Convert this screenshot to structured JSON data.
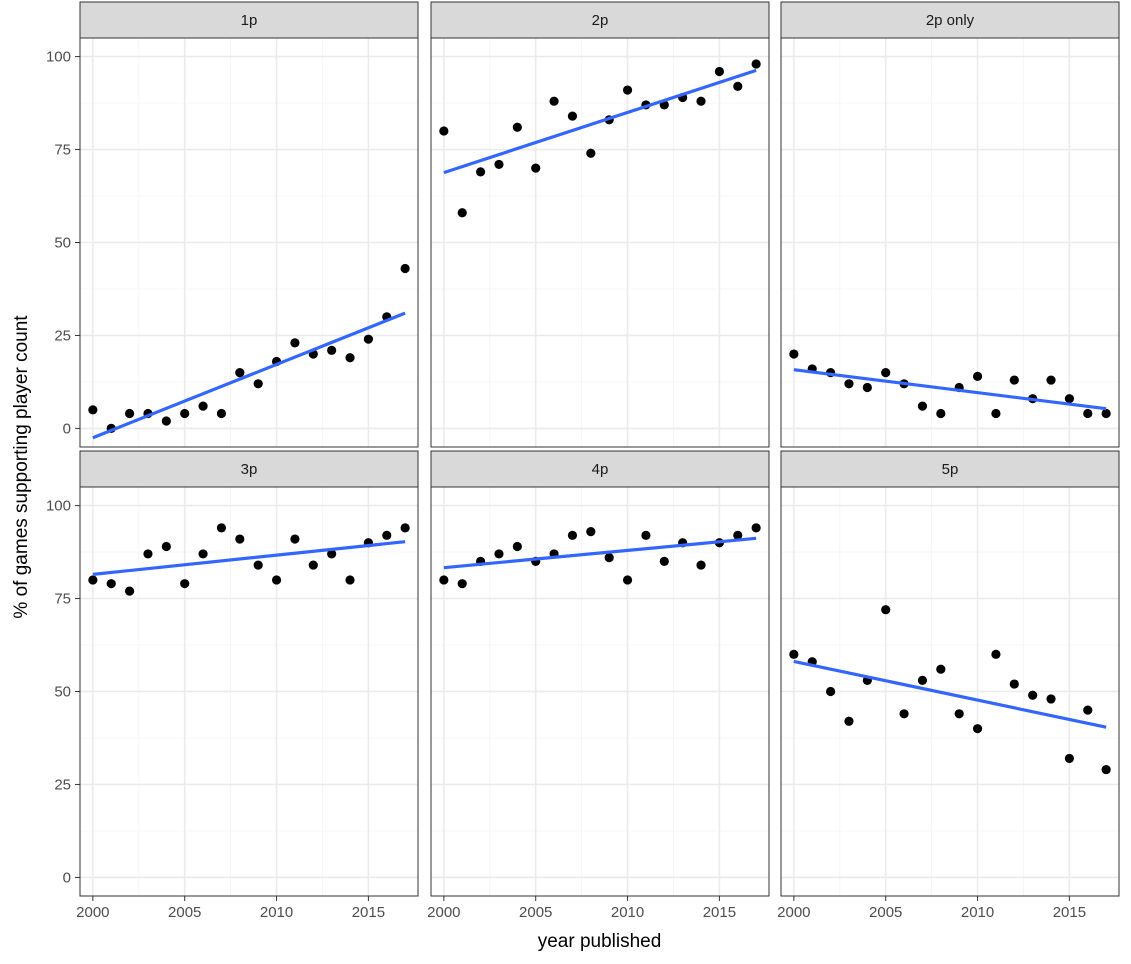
{
  "chart_data": {
    "type": "scatter",
    "facet_layout": "2x3",
    "xlabel": "year published",
    "ylabel": "% of games supporting player count",
    "xlim": [
      1999.3,
      2017.7
    ],
    "ylim": [
      -5,
      105
    ],
    "x_ticks": [
      2000,
      2005,
      2010,
      2015
    ],
    "y_ticks": [
      0,
      25,
      50,
      75,
      100
    ],
    "grid": true,
    "point_color": "#000000",
    "trend_color": "#3366ff",
    "strip_color": "#d9d9d9",
    "x": [
      2000,
      2001,
      2002,
      2003,
      2004,
      2005,
      2006,
      2007,
      2008,
      2009,
      2010,
      2011,
      2012,
      2013,
      2014,
      2015,
      2016,
      2017
    ],
    "facets": [
      {
        "label": "1p",
        "values": [
          5,
          0,
          4,
          4,
          2,
          4,
          6,
          4,
          15,
          12,
          18,
          23,
          20,
          21,
          19,
          24,
          30,
          43
        ],
        "trend": [
          -2.5,
          31
        ]
      },
      {
        "label": "2p",
        "values": [
          80,
          58,
          69,
          71,
          81,
          70,
          88,
          84,
          74,
          83,
          91,
          87,
          87,
          89,
          88,
          96,
          92,
          98
        ],
        "trend": [
          68.8,
          96.3
        ]
      },
      {
        "label": "2p only",
        "values": [
          20,
          16,
          15,
          12,
          11,
          15,
          12,
          6,
          4,
          11,
          14,
          4,
          13,
          8,
          13,
          8,
          4,
          4
        ],
        "trend": [
          15.8,
          5.3
        ]
      },
      {
        "label": "3p",
        "values": [
          80,
          79,
          77,
          87,
          89,
          79,
          87,
          94,
          91,
          84,
          80,
          91,
          84,
          87,
          80,
          90,
          92,
          94
        ],
        "trend": [
          81.5,
          90.3
        ]
      },
      {
        "label": "4p",
        "values": [
          80,
          79,
          85,
          87,
          89,
          85,
          87,
          92,
          93,
          86,
          80,
          92,
          85,
          90,
          84,
          90,
          92,
          94
        ],
        "trend": [
          83.3,
          91.2
        ]
      },
      {
        "label": "5p",
        "values": [
          60,
          58,
          50,
          42,
          53,
          72,
          44,
          53,
          56,
          44,
          40,
          60,
          52,
          49,
          48,
          32,
          45,
          29
        ],
        "trend": [
          58.1,
          40.4
        ]
      }
    ]
  }
}
